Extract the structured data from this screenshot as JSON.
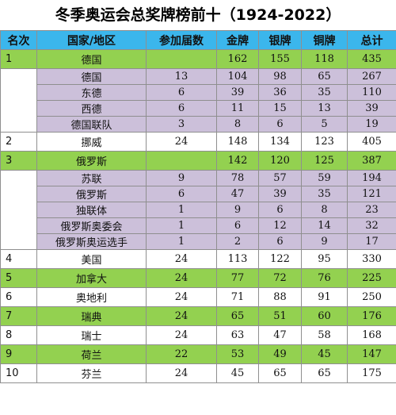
{
  "title": "冬季奥运会总奖牌榜前十（1924-2022）",
  "headers": [
    "名次",
    "国家/地区",
    "参加届数",
    "金牌",
    "银牌",
    "铜牌",
    "总计"
  ],
  "rows": [
    {
      "kind": "main",
      "style": "green",
      "cells": [
        "1",
        "德国",
        "",
        "162",
        "155",
        "118",
        "435"
      ]
    },
    {
      "kind": "sub",
      "cells": [
        "德国",
        "13",
        "104",
        "98",
        "65",
        "267"
      ]
    },
    {
      "kind": "sub",
      "cells": [
        "东德",
        "6",
        "39",
        "36",
        "35",
        "110"
      ]
    },
    {
      "kind": "sub",
      "cells": [
        "西德",
        "6",
        "11",
        "15",
        "13",
        "39"
      ]
    },
    {
      "kind": "sub",
      "cells": [
        "德国联队",
        "3",
        "8",
        "6",
        "5",
        "19"
      ]
    },
    {
      "kind": "main",
      "style": "white",
      "cells": [
        "2",
        "挪威",
        "24",
        "148",
        "134",
        "123",
        "405"
      ]
    },
    {
      "kind": "main",
      "style": "green",
      "cells": [
        "3",
        "俄罗斯",
        "",
        "142",
        "120",
        "125",
        "387"
      ]
    },
    {
      "kind": "sub",
      "cells": [
        "苏联",
        "9",
        "78",
        "57",
        "59",
        "194"
      ]
    },
    {
      "kind": "sub",
      "cells": [
        "俄罗斯",
        "6",
        "47",
        "39",
        "35",
        "121"
      ]
    },
    {
      "kind": "sub",
      "cells": [
        "独联体",
        "1",
        "9",
        "6",
        "8",
        "23"
      ]
    },
    {
      "kind": "sub",
      "cells": [
        "俄罗斯奥委会",
        "1",
        "6",
        "12",
        "14",
        "32"
      ]
    },
    {
      "kind": "sub",
      "cells": [
        "俄罗斯奥运选手",
        "1",
        "2",
        "6",
        "9",
        "17"
      ]
    },
    {
      "kind": "main",
      "style": "white",
      "cells": [
        "4",
        "美国",
        "24",
        "113",
        "122",
        "95",
        "330"
      ]
    },
    {
      "kind": "main",
      "style": "green",
      "cells": [
        "5",
        "加拿大",
        "24",
        "77",
        "72",
        "76",
        "225"
      ]
    },
    {
      "kind": "main",
      "style": "white",
      "cells": [
        "6",
        "奥地利",
        "24",
        "71",
        "88",
        "91",
        "250"
      ]
    },
    {
      "kind": "main",
      "style": "green",
      "cells": [
        "7",
        "瑞典",
        "24",
        "65",
        "51",
        "60",
        "176"
      ]
    },
    {
      "kind": "main",
      "style": "white",
      "cells": [
        "8",
        "瑞士",
        "24",
        "63",
        "47",
        "58",
        "168"
      ]
    },
    {
      "kind": "main",
      "style": "green",
      "cells": [
        "9",
        "荷兰",
        "22",
        "53",
        "49",
        "45",
        "147"
      ]
    },
    {
      "kind": "main",
      "style": "white",
      "cells": [
        "10",
        "芬兰",
        "24",
        "45",
        "65",
        "65",
        "175"
      ]
    }
  ],
  "colors": {
    "header_bg": "#3bb6ec",
    "green_row": "#93d150",
    "sub_row": "#ccc0da"
  }
}
